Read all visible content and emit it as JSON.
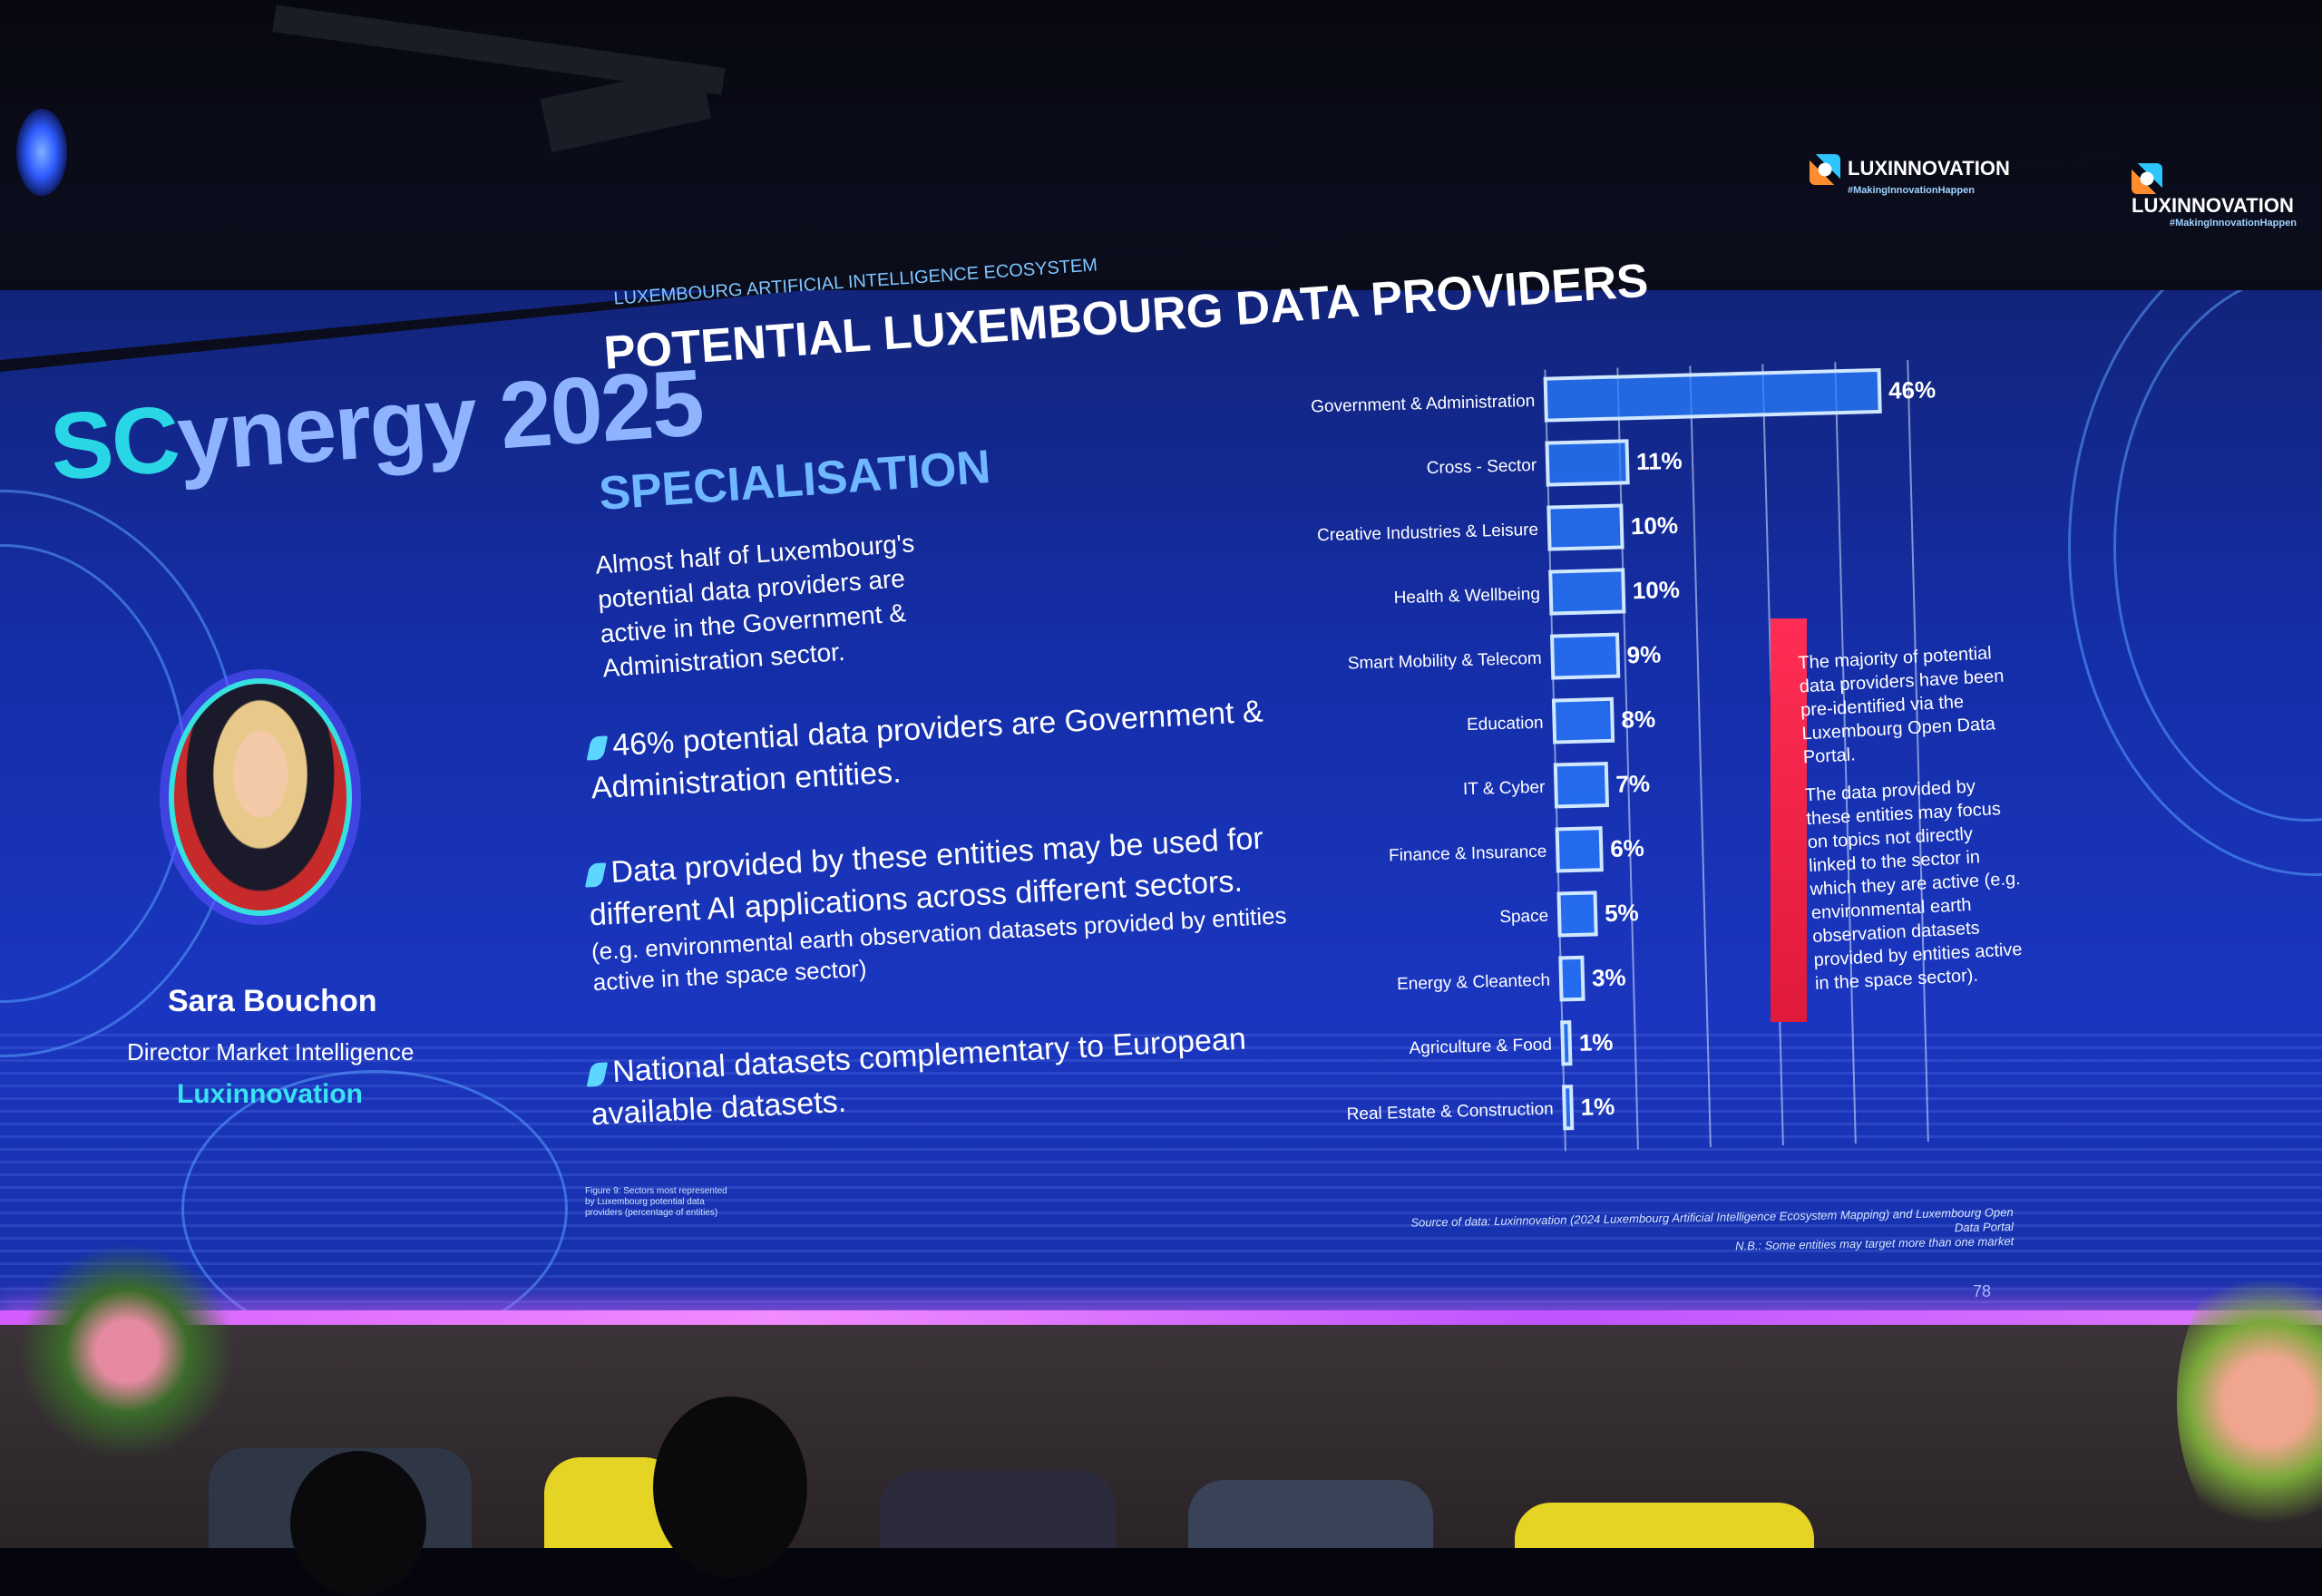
{
  "event": {
    "brand_sc": "SC",
    "brand_rest": "ynergy 2025"
  },
  "slide": {
    "ecosystem_label": "LUXEMBOURG ARTIFICIAL INTELLIGENCE ECOSYSTEM",
    "title": "POTENTIAL LUXEMBOURG DATA PROVIDERS",
    "subtitle": "SPECIALISATION",
    "intro": "Almost half of Luxembourg's potential data providers are active in the Government & Administration sector.",
    "bullets": [
      {
        "text": "46% potential data providers are Government & Administration entities.",
        "note": ""
      },
      {
        "text": "Data provided by these entities may be used for different AI applications across different sectors.",
        "note": "(e.g. environmental earth observation datasets provided by entities active in the space sector)"
      },
      {
        "text": "National datasets complementary to European available datasets.",
        "note": ""
      }
    ],
    "callout": [
      "The majority of potential data providers have been pre-identified via the Luxembourg Open Data Portal.",
      "The data provided by these entities may focus on topics not directly linked to the sector in which they are active (e.g. environmental earth observation datasets provided by entities active in the space sector)."
    ],
    "figure_note": "Figure 9: Sectors most represented by Luxembourg potential data providers (percentage of entities)",
    "source": "Source of data: Luxinnovation (2024 Luxembourg Artificial Intelligence Ecosystem Mapping) and Luxembourg Open Data Portal",
    "nb": "N.B.: Some entities may target more than one market",
    "page_number": "78"
  },
  "speaker": {
    "name": "Sara Bouchon",
    "role": "Director Market Intelligence",
    "organization": "Luxinnovation"
  },
  "logos": [
    {
      "name": "LUXINNOVATION",
      "tagline": "#MakingInnovationHappen"
    },
    {
      "name": "LUXINNOVATION",
      "tagline": "#MakingInnovationHappen"
    }
  ],
  "chart_data": {
    "type": "bar",
    "orientation": "horizontal",
    "categories": [
      "Government & Administration",
      "Cross - Sector",
      "Creative Industries & Leisure",
      "Health & Wellbeing",
      "Smart Mobility & Telecom",
      "Education",
      "IT & Cyber",
      "Finance & Insurance",
      "Space",
      "Energy & Cleantech",
      "Agriculture & Food",
      "Real Estate & Construction"
    ],
    "values": [
      46,
      11,
      10,
      10,
      9,
      8,
      7,
      6,
      5,
      3,
      1,
      1
    ],
    "value_labels": [
      "46%",
      "11%",
      "10%",
      "10%",
      "9%",
      "8%",
      "7%",
      "6%",
      "5%",
      "3%",
      "1%",
      "1%"
    ],
    "xlim": [
      0,
      50
    ],
    "grid": true,
    "colors": {
      "bar": "#2a7dff",
      "outline": "#cfe8ff",
      "text": "#ffffff"
    }
  },
  "colors": {
    "screen": "#1a36c0",
    "accent_cyan": "#29d6e6",
    "callout_red": "#ff2d55",
    "neon": "#e07aff"
  }
}
